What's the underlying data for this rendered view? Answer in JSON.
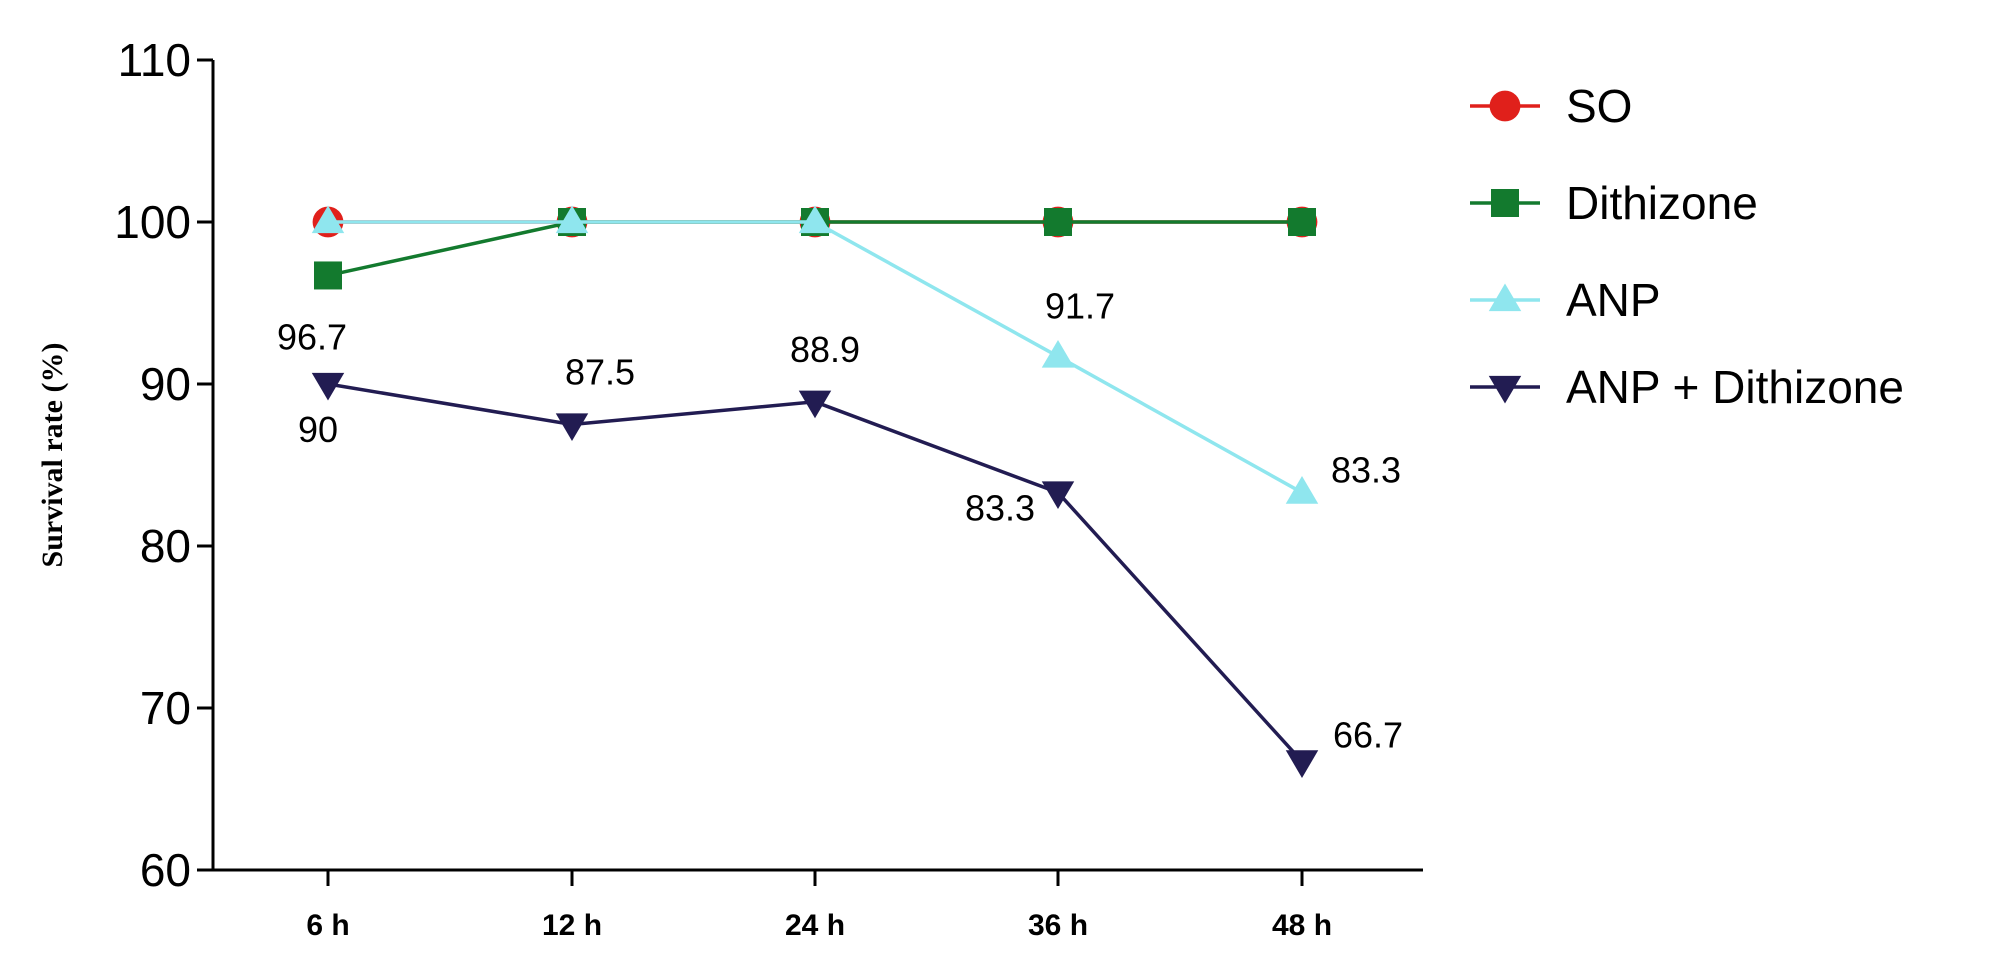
{
  "chart_data": {
    "type": "line",
    "categories": [
      "6 h",
      "12 h",
      "24 h",
      "36 h",
      "48 h"
    ],
    "ylabel": "Survival rate (%)",
    "xlabel": "",
    "ylim": [
      60,
      110
    ],
    "yticks": [
      "60",
      "70",
      "80",
      "90",
      "100",
      "110"
    ],
    "grid": false,
    "legend": "right",
    "series": [
      {
        "name": "SO",
        "values": [
          100,
          100,
          100,
          100,
          100
        ],
        "color": "#e0201b",
        "marker": "circle"
      },
      {
        "name": "Dithizone",
        "values": [
          96.7,
          100,
          100,
          100,
          100
        ],
        "color": "#137a2e",
        "marker": "square"
      },
      {
        "name": "ANP",
        "values": [
          100,
          100,
          100,
          91.7,
          83.3
        ],
        "color": "#8fe6ee",
        "marker": "triangle-up"
      },
      {
        "name": "ANP + Dithizone",
        "values": [
          90,
          87.5,
          88.9,
          83.3,
          66.7
        ],
        "color": "#221c52",
        "marker": "triangle-down"
      }
    ],
    "annotations": [
      {
        "text": "96.7",
        "x": "6 h",
        "y": 96.7
      },
      {
        "text": "90",
        "x": "6 h",
        "y": 90
      },
      {
        "text": "87.5",
        "x": "12 h",
        "y": 87.5
      },
      {
        "text": "88.9",
        "x": "24 h",
        "y": 88.9
      },
      {
        "text": "91.7",
        "x": "36 h",
        "y": 91.7
      },
      {
        "text": "83.3",
        "x": "36 h",
        "y": 83.3
      },
      {
        "text": "83.3",
        "x": "48 h",
        "y": 83.3
      },
      {
        "text": "66.7",
        "x": "48 h",
        "y": 66.7
      }
    ]
  }
}
